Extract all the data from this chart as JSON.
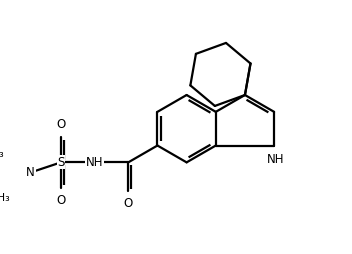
{
  "background": "#ffffff",
  "line_color": "#000000",
  "line_width": 1.6,
  "font_size": 8.5,
  "fig_width": 3.52,
  "fig_height": 2.54,
  "dpi": 100,
  "xlim": [
    0.0,
    9.5
  ],
  "ylim": [
    0.0,
    7.5
  ]
}
